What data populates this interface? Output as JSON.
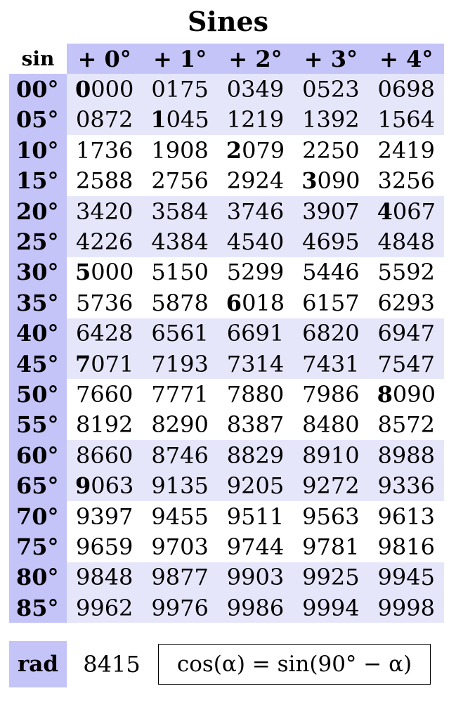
{
  "title": "Sines",
  "corner_label": "sin",
  "column_headers": [
    "+ 0°",
    "+ 1°",
    "+ 2°",
    "+ 3°",
    "+ 4°"
  ],
  "rows": [
    {
      "label": "00°",
      "values": [
        "0000",
        "0175",
        "0349",
        "0523",
        "0698"
      ],
      "emphasis_column": 0
    },
    {
      "label": "05°",
      "values": [
        "0872",
        "1045",
        "1219",
        "1392",
        "1564"
      ],
      "emphasis_column": 1
    },
    {
      "label": "10°",
      "values": [
        "1736",
        "1908",
        "2079",
        "2250",
        "2419"
      ],
      "emphasis_column": 2
    },
    {
      "label": "15°",
      "values": [
        "2588",
        "2756",
        "2924",
        "3090",
        "3256"
      ],
      "emphasis_column": 3
    },
    {
      "label": "20°",
      "values": [
        "3420",
        "3584",
        "3746",
        "3907",
        "4067"
      ],
      "emphasis_column": 4
    },
    {
      "label": "25°",
      "values": [
        "4226",
        "4384",
        "4540",
        "4695",
        "4848"
      ],
      "emphasis_column": null
    },
    {
      "label": "30°",
      "values": [
        "5000",
        "5150",
        "5299",
        "5446",
        "5592"
      ],
      "emphasis_column": 0
    },
    {
      "label": "35°",
      "values": [
        "5736",
        "5878",
        "6018",
        "6157",
        "6293"
      ],
      "emphasis_column": 2
    },
    {
      "label": "40°",
      "values": [
        "6428",
        "6561",
        "6691",
        "6820",
        "6947"
      ],
      "emphasis_column": null
    },
    {
      "label": "45°",
      "values": [
        "7071",
        "7193",
        "7314",
        "7431",
        "7547"
      ],
      "emphasis_column": 0
    },
    {
      "label": "50°",
      "values": [
        "7660",
        "7771",
        "7880",
        "7986",
        "8090"
      ],
      "emphasis_column": 4
    },
    {
      "label": "55°",
      "values": [
        "8192",
        "8290",
        "8387",
        "8480",
        "8572"
      ],
      "emphasis_column": null
    },
    {
      "label": "60°",
      "values": [
        "8660",
        "8746",
        "8829",
        "8910",
        "8988"
      ],
      "emphasis_column": null
    },
    {
      "label": "65°",
      "values": [
        "9063",
        "9135",
        "9205",
        "9272",
        "9336"
      ],
      "emphasis_column": 0
    },
    {
      "label": "70°",
      "values": [
        "9397",
        "9455",
        "9511",
        "9563",
        "9613"
      ],
      "emphasis_column": null
    },
    {
      "label": "75°",
      "values": [
        "9659",
        "9703",
        "9744",
        "9781",
        "9816"
      ],
      "emphasis_column": null
    },
    {
      "label": "80°",
      "values": [
        "9848",
        "9877",
        "9903",
        "9925",
        "9945"
      ],
      "emphasis_column": null
    },
    {
      "label": "85°",
      "values": [
        "9962",
        "9976",
        "9986",
        "9994",
        "9998"
      ],
      "emphasis_column": null
    }
  ],
  "rad_label": "rad",
  "rad_value": "8415",
  "identity": "cos(α) = sin(90° − α)",
  "colors": {
    "header_fill": "#c4c4f9",
    "band_fill": "#e6e6fb",
    "plain_fill": "#ffffff"
  }
}
